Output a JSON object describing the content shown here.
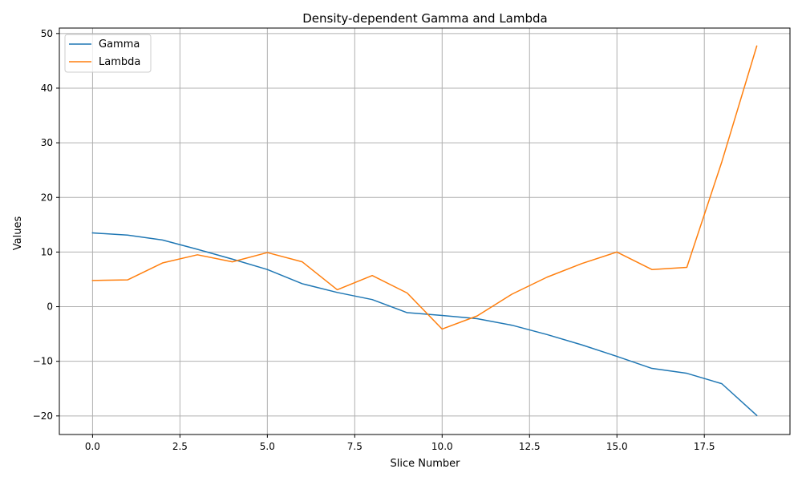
{
  "chart_data": {
    "type": "line",
    "title": "Density-dependent Gamma and Lambda",
    "xlabel": "Slice Number",
    "ylabel": "Values",
    "xlim": [
      -0.95,
      19.95
    ],
    "ylim": [
      -23.4,
      51.0
    ],
    "xticks": [
      0.0,
      2.5,
      5.0,
      7.5,
      10.0,
      12.5,
      15.0,
      17.5
    ],
    "xtick_labels": [
      "0.0",
      "2.5",
      "5.0",
      "7.5",
      "10.0",
      "12.5",
      "15.0",
      "17.5"
    ],
    "yticks": [
      -20,
      -10,
      0,
      10,
      20,
      30,
      40,
      50
    ],
    "ytick_labels": [
      "−20",
      "−10",
      "0",
      "10",
      "20",
      "30",
      "40",
      "50"
    ],
    "grid": true,
    "legend_position": "upper-left",
    "x": [
      0,
      1,
      2,
      3,
      4,
      5,
      6,
      7,
      8,
      9,
      10,
      11,
      12,
      13,
      14,
      15,
      16,
      17,
      18,
      19
    ],
    "series": [
      {
        "name": "Gamma",
        "color": "#1f77b4",
        "values": [
          13.5,
          13.1,
          12.2,
          10.5,
          8.7,
          6.8,
          4.2,
          2.6,
          1.3,
          -1.1,
          -1.6,
          -2.2,
          -3.4,
          -5.1,
          -7.0,
          -9.1,
          -11.3,
          -12.2,
          -14.1,
          -19.9
        ]
      },
      {
        "name": "Lambda",
        "color": "#ff7f0e",
        "values": [
          4.8,
          4.9,
          8.0,
          9.5,
          8.2,
          9.9,
          8.2,
          3.1,
          5.7,
          2.5,
          -4.1,
          -1.7,
          2.3,
          5.4,
          7.9,
          10.0,
          6.8,
          7.2,
          26.5,
          47.7
        ]
      }
    ]
  }
}
